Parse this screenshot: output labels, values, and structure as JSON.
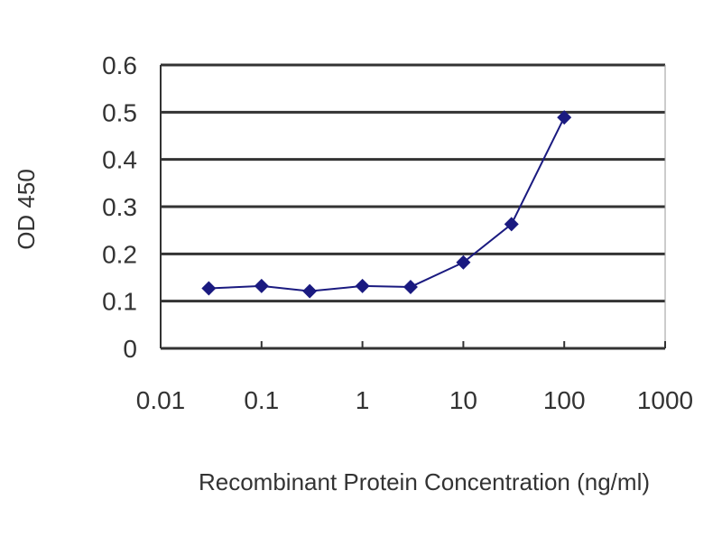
{
  "chart_data": {
    "type": "line",
    "title": "",
    "xlabel": "Recombinant Protein Concentration (ng/ml)",
    "ylabel": "OD 450",
    "x_scale": "log",
    "xlim": [
      0.01,
      1000
    ],
    "ylim": [
      0,
      0.6
    ],
    "x_ticks": [
      "0.01",
      "0.1",
      "1",
      "10",
      "100",
      "1000"
    ],
    "y_ticks": [
      "0",
      "0.1",
      "0.2",
      "0.3",
      "0.4",
      "0.5",
      "0.6"
    ],
    "grid": "horizontal",
    "legend": "none",
    "series": [
      {
        "color": "#1a1a80",
        "marker": "diamond",
        "x": [
          0.03,
          0.1,
          0.3,
          1,
          3,
          10,
          30,
          100
        ],
        "y": [
          0.127,
          0.132,
          0.121,
          0.132,
          0.13,
          0.182,
          0.263,
          0.489
        ]
      }
    ]
  }
}
